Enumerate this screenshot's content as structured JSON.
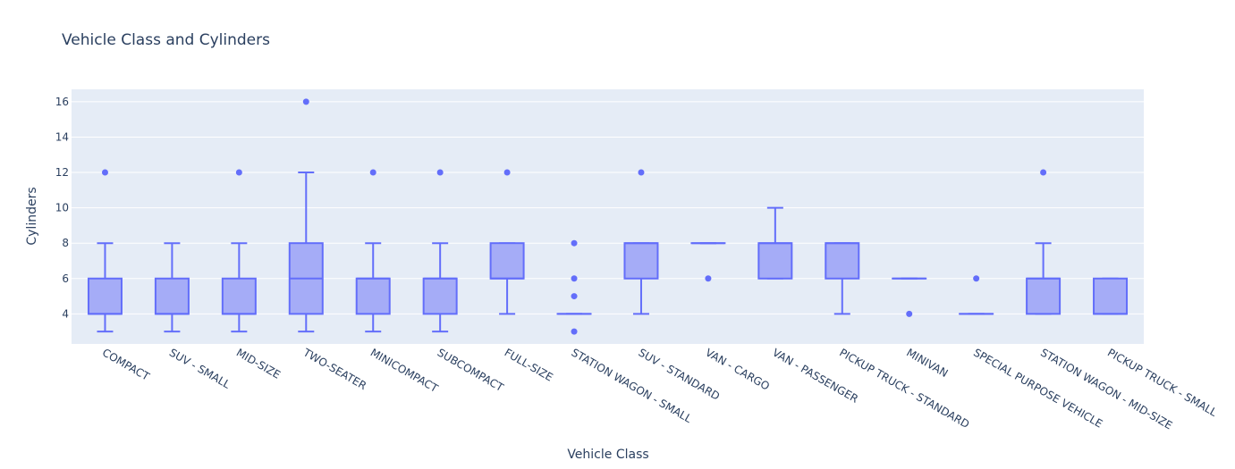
{
  "chart_data": {
    "type": "box",
    "title": "Vehicle Class and Cylinders",
    "xlabel": "Vehicle Class",
    "ylabel": "Cylinders",
    "ylim": [
      2.3,
      16.7
    ],
    "yticks": [
      4,
      6,
      8,
      10,
      12,
      14,
      16
    ],
    "grid": true,
    "colors": {
      "box_fill": "#a5acf7",
      "box_line": "#636efa",
      "plot_bg": "#e5ecf6",
      "grid": "#ffffff",
      "text": "#2a3f5f"
    },
    "categories": [
      "COMPACT",
      "SUV - SMALL",
      "MID-SIZE",
      "TWO-SEATER",
      "MINICOMPACT",
      "SUBCOMPACT",
      "FULL-SIZE",
      "STATION WAGON - SMALL",
      "SUV - STANDARD",
      "VAN - CARGO",
      "VAN - PASSENGER",
      "PICKUP TRUCK - STANDARD",
      "MINIVAN",
      "SPECIAL PURPOSE VEHICLE",
      "STATION WAGON - MID-SIZE",
      "PICKUP TRUCK - SMALL"
    ],
    "boxes": [
      {
        "min": 3,
        "q1": 4,
        "median": 4,
        "q3": 6,
        "max": 8,
        "outliers": [
          12
        ]
      },
      {
        "min": 3,
        "q1": 4,
        "median": 4,
        "q3": 6,
        "max": 8,
        "outliers": []
      },
      {
        "min": 3,
        "q1": 4,
        "median": 4,
        "q3": 6,
        "max": 8,
        "outliers": [
          12
        ]
      },
      {
        "min": 3,
        "q1": 4,
        "median": 6,
        "q3": 8,
        "max": 12,
        "outliers": [
          16
        ]
      },
      {
        "min": 3,
        "q1": 4,
        "median": 6,
        "q3": 6,
        "max": 8,
        "outliers": [
          12
        ]
      },
      {
        "min": 3,
        "q1": 4,
        "median": 6,
        "q3": 6,
        "max": 8,
        "outliers": [
          12
        ]
      },
      {
        "min": 4,
        "q1": 6,
        "median": 6,
        "q3": 8,
        "max": 8,
        "outliers": [
          12
        ]
      },
      {
        "min": 4,
        "q1": 4,
        "median": 4,
        "q3": 4,
        "max": 4,
        "outliers": [
          3,
          5,
          6,
          8
        ]
      },
      {
        "min": 4,
        "q1": 6,
        "median": 8,
        "q3": 8,
        "max": 8,
        "outliers": [
          12
        ]
      },
      {
        "min": 8,
        "q1": 8,
        "median": 8,
        "q3": 8,
        "max": 8,
        "outliers": [
          6
        ]
      },
      {
        "min": 6,
        "q1": 6,
        "median": 8,
        "q3": 8,
        "max": 10,
        "outliers": []
      },
      {
        "min": 4,
        "q1": 6,
        "median": 8,
        "q3": 8,
        "max": 8,
        "outliers": []
      },
      {
        "min": 6,
        "q1": 6,
        "median": 6,
        "q3": 6,
        "max": 6,
        "outliers": [
          4
        ]
      },
      {
        "min": 4,
        "q1": 4,
        "median": 4,
        "q3": 4,
        "max": 4,
        "outliers": [
          6
        ]
      },
      {
        "min": 4,
        "q1": 4,
        "median": 6,
        "q3": 6,
        "max": 8,
        "outliers": [
          12
        ]
      },
      {
        "min": 4,
        "q1": 4,
        "median": 4,
        "q3": 6,
        "max": 6,
        "outliers": []
      }
    ]
  }
}
